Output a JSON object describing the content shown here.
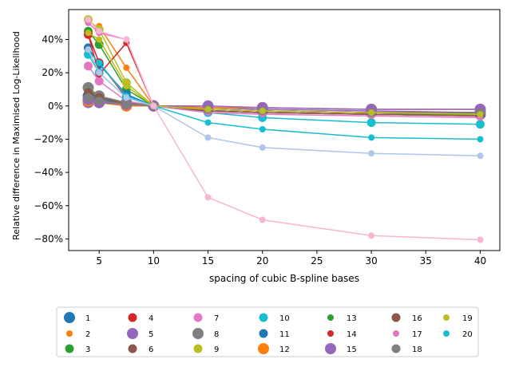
{
  "chart_data": {
    "type": "line",
    "title": "",
    "xlabel": "spacing of cubic B-spline bases",
    "ylabel": "Relative difference in Maximised Log-Likelihood",
    "xlim": [
      2.2,
      41.8
    ],
    "ylim": [
      -0.87,
      0.58
    ],
    "x_ticks": [
      5,
      10,
      15,
      20,
      25,
      30,
      35,
      40
    ],
    "x_tick_labels": [
      "5",
      "10",
      "15",
      "20",
      "25",
      "30",
      "35",
      "40"
    ],
    "y_ticks": [
      0.4,
      0.2,
      0.0,
      -0.2,
      -0.4,
      -0.6,
      -0.8
    ],
    "y_tick_labels": [
      "40%",
      "20%",
      "0%",
      "−20%",
      "−40%",
      "−60%",
      "−80%"
    ],
    "grid": false,
    "legend_position": "bottom-center",
    "legend_columns": 8,
    "series": [
      {
        "name": "1",
        "color": "#1f77b4",
        "marker_size": "large",
        "points": [
          [
            4,
            0.06
          ],
          [
            5,
            0.04
          ],
          [
            7.5,
            0.01
          ],
          [
            10,
            0.0
          ],
          [
            15,
            -0.02
          ],
          [
            20,
            -0.03
          ],
          [
            30,
            -0.04
          ],
          [
            40,
            -0.05
          ]
        ]
      },
      {
        "name": "2",
        "color": "#ff7f0e",
        "marker_size": "small",
        "points": [
          [
            5,
            0.48
          ],
          [
            7.5,
            0.23
          ],
          [
            10,
            0.0
          ],
          [
            15,
            -0.03
          ],
          [
            20,
            -0.04
          ],
          [
            30,
            -0.05
          ],
          [
            40,
            -0.06
          ]
        ]
      },
      {
        "name": "3",
        "color": "#2ca02c",
        "marker_size": "medium",
        "points": [
          [
            4,
            0.45
          ],
          [
            5,
            0.37
          ],
          [
            7.5,
            0.1
          ],
          [
            10,
            0.0
          ],
          [
            15,
            -0.03
          ],
          [
            20,
            -0.04
          ],
          [
            30,
            -0.05
          ],
          [
            40,
            -0.05
          ]
        ]
      },
      {
        "name": "4",
        "color": "#d62728",
        "marker_size": "medium",
        "points": [
          [
            4,
            0.43
          ],
          [
            5,
            0.26
          ],
          [
            7.5,
            0.05
          ],
          [
            10,
            0.0
          ],
          [
            15,
            -0.03
          ],
          [
            20,
            -0.04
          ],
          [
            30,
            -0.05
          ],
          [
            40,
            -0.06
          ]
        ]
      },
      {
        "name": "5",
        "color": "#9467bd",
        "marker_size": "large",
        "points": [
          [
            4,
            0.02
          ],
          [
            5,
            0.02
          ],
          [
            7.5,
            0.0
          ],
          [
            10,
            0.0
          ],
          [
            15,
            -0.01
          ],
          [
            20,
            -0.02
          ],
          [
            30,
            -0.03
          ],
          [
            40,
            -0.04
          ]
        ]
      },
      {
        "name": "6",
        "color": "#8c564b",
        "marker_size": "medium",
        "points": [
          [
            4,
            0.1
          ],
          [
            5,
            0.05
          ],
          [
            7.5,
            0.02
          ],
          [
            10,
            0.0
          ],
          [
            15,
            -0.02
          ],
          [
            20,
            -0.03
          ],
          [
            30,
            -0.04
          ],
          [
            40,
            -0.04
          ]
        ]
      },
      {
        "name": "7",
        "color": "#e377c2",
        "marker_size": "medium",
        "points": [
          [
            4,
            0.24
          ],
          [
            5,
            0.15
          ],
          [
            7.5,
            0.03
          ],
          [
            10,
            0.0
          ],
          [
            15,
            -0.03
          ],
          [
            20,
            -0.04
          ],
          [
            30,
            -0.05
          ],
          [
            40,
            -0.06
          ]
        ]
      },
      {
        "name": "8",
        "color": "#7f7f7f",
        "marker_size": "large",
        "points": [
          [
            4,
            0.11
          ],
          [
            5,
            0.06
          ],
          [
            7.5,
            0.02
          ],
          [
            10,
            0.0
          ],
          [
            15,
            -0.02
          ],
          [
            20,
            -0.03
          ],
          [
            30,
            -0.04
          ],
          [
            40,
            -0.04
          ]
        ]
      },
      {
        "name": "9",
        "color": "#bcbd22",
        "marker_size": "medium",
        "points": [
          [
            4,
            0.52
          ],
          [
            5,
            0.46
          ],
          [
            7.5,
            0.14
          ],
          [
            10,
            0.0
          ],
          [
            15,
            -0.02
          ],
          [
            20,
            -0.03
          ],
          [
            30,
            -0.04
          ],
          [
            40,
            -0.05
          ]
        ]
      },
      {
        "name": "10",
        "color": "#17becf",
        "marker_size": "medium",
        "points": [
          [
            4,
            0.31
          ],
          [
            5,
            0.2
          ],
          [
            7.5,
            0.05
          ],
          [
            10,
            0.0
          ],
          [
            15,
            -0.04
          ],
          [
            20,
            -0.07
          ],
          [
            30,
            -0.1
          ],
          [
            40,
            -0.11
          ]
        ]
      },
      {
        "name": "11",
        "color": "#1f77b4",
        "marker_size": "medium",
        "points": [
          [
            4,
            0.35
          ],
          [
            5,
            0.25
          ],
          [
            7.5,
            0.07
          ],
          [
            10,
            0.0
          ],
          [
            15,
            -0.02
          ],
          [
            20,
            -0.03
          ],
          [
            30,
            -0.04
          ],
          [
            40,
            -0.05
          ]
        ]
      },
      {
        "name": "12",
        "color": "#ff7f0e",
        "marker_size": "large",
        "points": [
          [
            4,
            0.03
          ],
          [
            5,
            0.02
          ],
          [
            7.5,
            0.0
          ],
          [
            10,
            0.0
          ],
          [
            15,
            -0.01
          ],
          [
            20,
            -0.01
          ],
          [
            30,
            -0.02
          ],
          [
            40,
            -0.02
          ]
        ]
      },
      {
        "name": "13",
        "color": "#2ca02c",
        "marker_size": "small",
        "points": [
          [
            4,
            0.09
          ],
          [
            5,
            0.05
          ],
          [
            7.5,
            0.01
          ],
          [
            10,
            0.0
          ],
          [
            15,
            -0.02
          ],
          [
            20,
            -0.03
          ],
          [
            30,
            -0.04
          ],
          [
            40,
            -0.05
          ]
        ]
      },
      {
        "name": "14",
        "color": "#d62728",
        "marker_size": "small",
        "points": [
          [
            4,
            0.43
          ],
          [
            5,
            0.19
          ],
          [
            7.5,
            0.38
          ],
          [
            10,
            0.0
          ],
          [
            15,
            -0.02
          ],
          [
            20,
            -0.03
          ],
          [
            30,
            -0.04
          ],
          [
            40,
            -0.04
          ]
        ]
      },
      {
        "name": "15",
        "color": "#9467bd",
        "marker_size": "large",
        "points": [
          [
            4,
            0.04
          ],
          [
            5,
            0.02
          ],
          [
            7.5,
            0.01
          ],
          [
            10,
            0.0
          ],
          [
            15,
            0.0
          ],
          [
            20,
            -0.01
          ],
          [
            30,
            -0.02
          ],
          [
            40,
            -0.02
          ]
        ]
      },
      {
        "name": "16",
        "color": "#8c564b",
        "marker_size": "medium",
        "points": [
          [
            4,
            0.08
          ],
          [
            5,
            0.05
          ],
          [
            7.5,
            0.01
          ],
          [
            10,
            0.0
          ],
          [
            15,
            -0.03
          ],
          [
            20,
            -0.04
          ],
          [
            30,
            -0.05
          ],
          [
            40,
            -0.06
          ]
        ]
      },
      {
        "name": "17",
        "color": "#e377c2",
        "marker_size": "small",
        "points": [
          [
            4,
            0.5
          ],
          [
            5,
            0.44
          ],
          [
            7.5,
            0.4
          ],
          [
            10,
            0.0
          ],
          [
            15,
            -0.04
          ],
          [
            20,
            -0.05
          ],
          [
            30,
            -0.06
          ],
          [
            40,
            -0.07
          ]
        ]
      },
      {
        "name": "18",
        "color": "#7f7f7f",
        "marker_size": "medium",
        "points": [
          [
            4,
            0.05
          ],
          [
            5,
            0.03
          ],
          [
            7.5,
            0.01
          ],
          [
            10,
            0.0
          ],
          [
            15,
            -0.02
          ],
          [
            20,
            -0.03
          ],
          [
            30,
            -0.04
          ],
          [
            40,
            -0.04
          ]
        ]
      },
      {
        "name": "19",
        "color": "#bcbd22",
        "marker_size": "small",
        "points": [
          [
            4,
            0.44
          ],
          [
            5,
            0.4
          ],
          [
            7.5,
            0.12
          ],
          [
            10,
            0.0
          ],
          [
            15,
            -0.02
          ],
          [
            20,
            -0.03
          ],
          [
            30,
            -0.04
          ],
          [
            40,
            -0.05
          ]
        ]
      },
      {
        "name": "20",
        "color": "#17becf",
        "marker_size": "small",
        "points": [
          [
            4,
            0.33
          ],
          [
            5,
            0.26
          ],
          [
            7.5,
            0.06
          ],
          [
            10,
            0.0
          ],
          [
            15,
            -0.1
          ],
          [
            20,
            -0.14
          ],
          [
            30,
            -0.19
          ],
          [
            40,
            -0.2
          ]
        ]
      },
      {
        "name": "",
        "color": "#aec7e8",
        "marker_size": "small",
        "points": [
          [
            4,
            0.34
          ],
          [
            5,
            0.2
          ],
          [
            7.5,
            0.05
          ],
          [
            10,
            0.0
          ],
          [
            15,
            -0.19
          ],
          [
            20,
            -0.25
          ],
          [
            30,
            -0.285
          ],
          [
            40,
            -0.3
          ]
        ]
      },
      {
        "name": "",
        "color": "#f7b6d2",
        "marker_size": "small",
        "points": [
          [
            4,
            0.52
          ],
          [
            5,
            0.45
          ],
          [
            7.5,
            0.4
          ],
          [
            10,
            0.0
          ],
          [
            15,
            -0.55
          ],
          [
            20,
            -0.685
          ],
          [
            30,
            -0.78
          ],
          [
            40,
            -0.805
          ]
        ]
      }
    ]
  }
}
